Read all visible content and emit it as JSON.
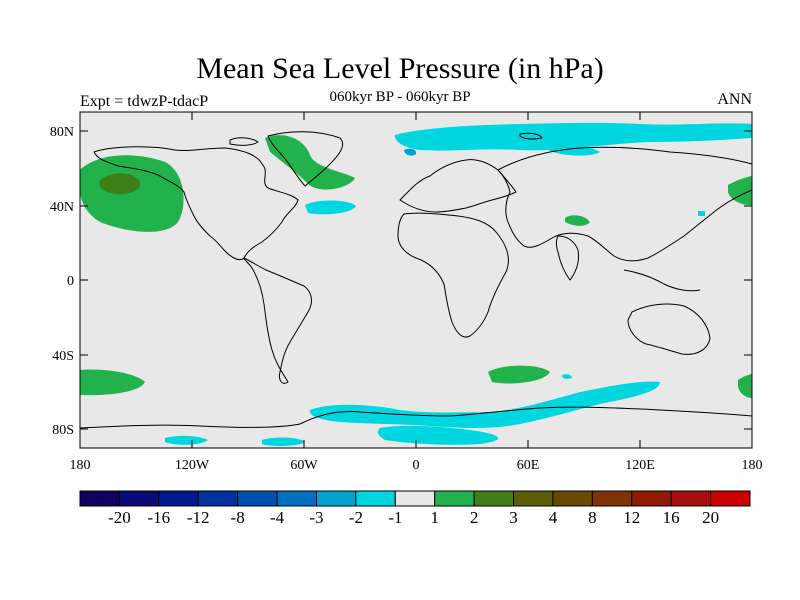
{
  "title": "Mean Sea Level Pressure (in hPa)",
  "subtitle": "060kyr BP - 060kyr BP",
  "left_label": "Expt = tdwzP-tdacP",
  "right_label": "ANN",
  "map": {
    "projection": "cylindrical equidistant",
    "lon_range": [
      -180,
      180
    ],
    "lat_range": [
      -90,
      90
    ],
    "background_color": "#e8e8e8",
    "coastline_color": "#000000",
    "lat_ticks": [
      "80N",
      "40N",
      "0",
      "40S",
      "80S"
    ],
    "lon_ticks": [
      "180",
      "120W",
      "60W",
      "0",
      "60E",
      "120E",
      "180"
    ],
    "features": [
      {
        "name": "North Pacific high (positive)",
        "level_color": "#22b24b",
        "approx_lon": -160,
        "approx_lat": 50,
        "value_range": "1 to 3"
      },
      {
        "name": "Labrador Sea / Greenland west (positive)",
        "level_color": "#22b24b",
        "approx_lon": -55,
        "approx_lat": 70,
        "value_range": "1 to 2"
      },
      {
        "name": "Arctic / Barents Sea (negative)",
        "level_color": "#00d6e0",
        "approx_lon": 60,
        "approx_lat": 78,
        "value_range": "-2 to -1"
      },
      {
        "name": "Central North Atlantic (negative)",
        "level_color": "#00d6e0",
        "approx_lon": -35,
        "approx_lat": 38,
        "value_range": "-2 to -1"
      },
      {
        "name": "Southern Ocean (negative)",
        "level_color": "#00d6e0",
        "approx_lon": 0,
        "approx_lat": -70,
        "value_range": "-2 to -1"
      },
      {
        "name": "South Atlantic/Indian (positive)",
        "level_color": "#22b24b",
        "approx_lon": 45,
        "approx_lat": -50,
        "value_range": "1 to 2"
      },
      {
        "name": "South Pacific (positive)",
        "level_color": "#22b24b",
        "approx_lon": -165,
        "approx_lat": -52,
        "value_range": "1 to 2"
      },
      {
        "name": "East Asia/N Pacific (positive)",
        "level_color": "#22b24b",
        "approx_lon": 175,
        "approx_lat": 45,
        "value_range": "1 to 2"
      }
    ]
  },
  "colorbar": {
    "labels": [
      "-20",
      "-16",
      "-12",
      "-8",
      "-4",
      "-3",
      "-2",
      "-1",
      "1",
      "2",
      "3",
      "4",
      "8",
      "12",
      "16",
      "20"
    ],
    "colors": [
      "#12005e",
      "#0a0a78",
      "#001b8e",
      "#0033a0",
      "#0050b0",
      "#0070c0",
      "#00a3cf",
      "#00d6e0",
      "#e8e8e8",
      "#22b24b",
      "#3f7f17",
      "#5a5f04",
      "#6a4a00",
      "#7f3300",
      "#8f1a00",
      "#a80d0d",
      "#cc0000"
    ]
  }
}
